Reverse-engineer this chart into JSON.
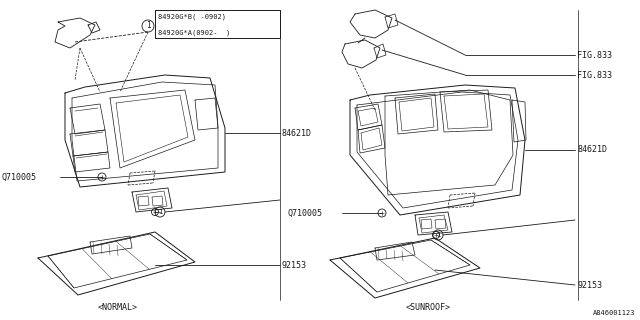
{
  "title": "",
  "bg_color": "#ffffff",
  "line_color": "#1a1a1a",
  "fig_width": 6.4,
  "fig_height": 3.2,
  "dpi": 100,
  "labels": {
    "part1_line1": "84920G*B( -0902)",
    "part1_line2": "84920G*A(0902-  )",
    "84621D_left": "84621D",
    "84621D_right": "84621D",
    "Q710005_left": "Q710005",
    "Q710005_right": "Q710005",
    "92153_left": "92153",
    "92153_right": "92153",
    "FIG833_top": "FIG.833",
    "FIG833_bot": "FIG.833",
    "normal": "<NORMAL>",
    "sunroof": "<SUNROOF>",
    "diagram_id": "A846001123"
  },
  "font_size": 6.0,
  "small_font": 5.0
}
